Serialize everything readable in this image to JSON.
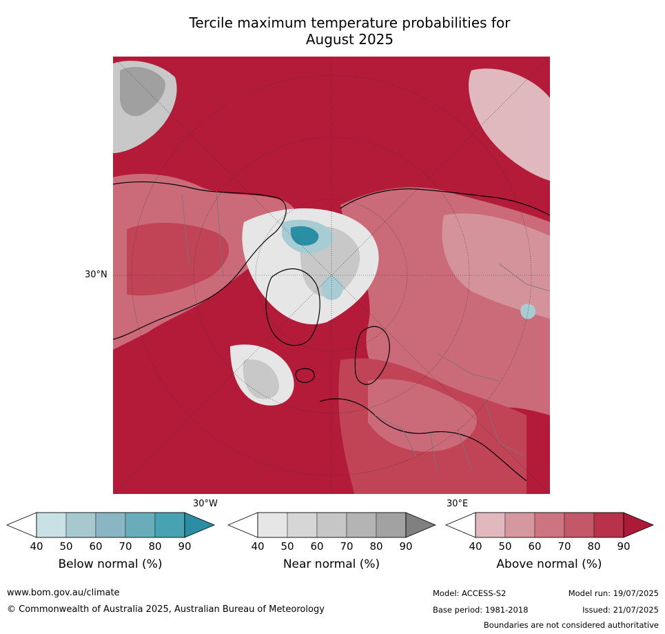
{
  "title_line1": "Tercile maximum temperature probabilities for",
  "title_line2": "August 2025",
  "map": {
    "lat_label": "30°N",
    "lon_left_label": "30°W",
    "lon_right_label": "30°E",
    "colors": {
      "ocean_dominant": "#b31b39",
      "above_80": "#c04356",
      "above_70": "#cb6a78",
      "above_60": "#d4929b",
      "above_50": "#dfb9bd",
      "near_low": "#e6e6e6",
      "near_mid": "#c8c8c8",
      "near_high": "#a0a0a0",
      "below_low": "#a8ccd3",
      "below_high": "#2a8fa5"
    }
  },
  "legends": [
    {
      "title": "Below normal (%)",
      "ticks": [
        "40",
        "50",
        "60",
        "70",
        "80",
        "90"
      ],
      "colors": [
        "#ffffff",
        "#c9e0e5",
        "#a8c8cf",
        "#8ab5c2",
        "#6aadba",
        "#47a2b1",
        "#2a8da3"
      ]
    },
    {
      "title": "Near normal (%)",
      "ticks": [
        "40",
        "50",
        "60",
        "70",
        "80",
        "90"
      ],
      "colors": [
        "#ffffff",
        "#e6e6e6",
        "#d6d6d6",
        "#c6c6c6",
        "#b4b4b4",
        "#a2a2a2",
        "#808080"
      ]
    },
    {
      "title": "Above normal (%)",
      "ticks": [
        "40",
        "50",
        "60",
        "70",
        "80",
        "90"
      ],
      "colors": [
        "#ffffff",
        "#e0b8be",
        "#d6989f",
        "#cc7580",
        "#c25868",
        "#b8324a",
        "#ad1a38"
      ]
    }
  ],
  "footer": {
    "website": "www.bom.gov.au/climate",
    "copyright": "© Commonwealth of Australia 2025, Australian Bureau of Meteorology",
    "model": "Model: ACCESS-S2",
    "base_period": "Base period: 1981-2018",
    "model_run": "Model run: 19/07/2025",
    "issued": "Issued: 21/07/2025",
    "disclaimer": "Boundaries are not considered authoritative"
  }
}
